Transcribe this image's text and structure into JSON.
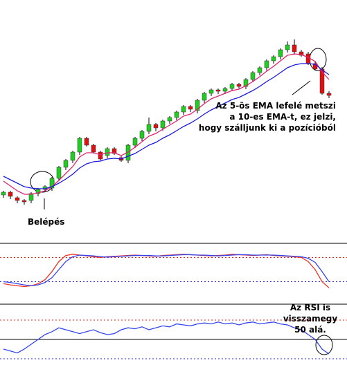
{
  "chart_data": [
    {
      "type": "candlestick",
      "ylim": [
        0,
        350
      ],
      "up_color": "#22cc22",
      "down_color": "#dd1111",
      "open": [
        68,
        72,
        64,
        60,
        60,
        70,
        76,
        78,
        92,
        108,
        118,
        130,
        150,
        140,
        130,
        125,
        135,
        122,
        118,
        140,
        150,
        160,
        170,
        165,
        175,
        180,
        188,
        196,
        190,
        205,
        215,
        220,
        218,
        222,
        228,
        225,
        235,
        245,
        252,
        262,
        268,
        278,
        285,
        275,
        272,
        258,
        250,
        215
      ],
      "high": [
        74,
        74,
        66,
        62,
        72,
        78,
        82,
        94,
        110,
        120,
        132,
        152,
        152,
        142,
        132,
        137,
        137,
        124,
        142,
        152,
        162,
        180,
        172,
        177,
        182,
        190,
        198,
        198,
        207,
        217,
        222,
        222,
        224,
        230,
        230,
        237,
        247,
        254,
        264,
        270,
        280,
        290,
        293,
        278,
        275,
        262,
        253,
        218
      ],
      "low": [
        64,
        62,
        56,
        54,
        56,
        66,
        72,
        74,
        88,
        104,
        114,
        126,
        138,
        128,
        118,
        121,
        126,
        116,
        114,
        136,
        146,
        156,
        160,
        161,
        171,
        176,
        184,
        188,
        186,
        201,
        211,
        214,
        214,
        218,
        222,
        221,
        231,
        241,
        248,
        258,
        264,
        274,
        271,
        268,
        256,
        248,
        213,
        208
      ],
      "close": [
        72,
        66,
        60,
        58,
        70,
        76,
        80,
        92,
        108,
        118,
        130,
        150,
        140,
        130,
        120,
        135,
        128,
        118,
        140,
        150,
        160,
        170,
        165,
        175,
        180,
        188,
        196,
        192,
        205,
        215,
        220,
        218,
        222,
        228,
        225,
        235,
        245,
        252,
        262,
        268,
        278,
        285,
        275,
        270,
        258,
        250,
        215,
        212
      ],
      "series": [
        {
          "color": "#e0206e",
          "values": [
            88,
            81,
            74,
            69,
            69,
            71,
            74,
            80,
            89,
            99,
            109,
            123,
            129,
            129,
            126,
            129,
            129,
            125,
            130,
            137,
            145,
            153,
            157,
            163,
            169,
            175,
            182,
            185,
            192,
            200,
            207,
            211,
            215,
            219,
            221,
            226,
            232,
            239,
            247,
            254,
            262,
            270,
            272,
            271,
            267,
            261,
            246,
            235
          ]
        },
        {
          "color": "#1a1ae0",
          "values": [
            95,
            90,
            85,
            80,
            78,
            77,
            77,
            80,
            85,
            91,
            98,
            107,
            113,
            116,
            117,
            120,
            121,
            120,
            124,
            128,
            134,
            140,
            144,
            150,
            155,
            161,
            167,
            172,
            178,
            185,
            191,
            196,
            201,
            206,
            209,
            214,
            219,
            225,
            232,
            238,
            245,
            252,
            256,
            258,
            258,
            257,
            249,
            242
          ]
        }
      ],
      "annotations": [
        {
          "lines": [
            "Belépés"
          ]
        },
        {
          "lines": [
            "Az 5-ös EMA lefelé metszi",
            "a 10-es EMA-t, ez jelzi,",
            "hogy szálljunk ki a pozícióból"
          ]
        }
      ]
    },
    {
      "type": "line",
      "ylim": [
        -10,
        110
      ],
      "levels": [
        {
          "value": 80,
          "color": "#dd2222"
        },
        {
          "value": 20,
          "color": "#2222dd"
        }
      ],
      "series": [
        {
          "color": "#ee3322",
          "values": [
            15,
            12,
            10,
            8,
            10,
            15,
            25,
            45,
            70,
            85,
            88,
            86,
            84,
            82,
            80,
            82,
            83,
            84,
            85,
            86,
            85,
            84,
            83,
            85,
            86,
            87,
            88,
            87,
            86,
            85,
            84,
            85,
            86,
            88,
            87,
            86,
            85,
            86,
            87,
            85,
            84,
            83,
            82,
            80,
            70,
            50,
            20,
            5
          ]
        },
        {
          "color": "#3344ee",
          "values": [
            20,
            18,
            15,
            12,
            10,
            12,
            18,
            30,
            50,
            70,
            82,
            86,
            85,
            84,
            82,
            81,
            82,
            83,
            84,
            85,
            85,
            85,
            84,
            84,
            85,
            86,
            87,
            87,
            86,
            86,
            85,
            84,
            85,
            86,
            87,
            87,
            86,
            86,
            86,
            86,
            85,
            84,
            83,
            82,
            78,
            68,
            45,
            20
          ]
        }
      ]
    },
    {
      "type": "line",
      "ylim": [
        25,
        85
      ],
      "levels": [
        {
          "value": 70,
          "color": "#dd2222"
        },
        {
          "value": 50,
          "color": "#000000"
        },
        {
          "value": 30,
          "color": "#2222dd"
        }
      ],
      "series": [
        {
          "color": "#3344ee",
          "values": [
            40,
            38,
            36,
            40,
            45,
            50,
            55,
            58,
            62,
            60,
            58,
            56,
            58,
            60,
            57,
            55,
            56,
            60,
            62,
            61,
            63,
            60,
            62,
            64,
            63,
            66,
            65,
            64,
            66,
            67,
            66,
            68,
            66,
            67,
            65,
            67,
            68,
            66,
            67,
            68,
            66,
            65,
            62,
            60,
            55,
            50,
            40,
            35
          ]
        }
      ],
      "annotations": [
        {
          "lines": [
            "Az RSI is",
            "visszamegy",
            "50 alá."
          ]
        }
      ]
    }
  ]
}
